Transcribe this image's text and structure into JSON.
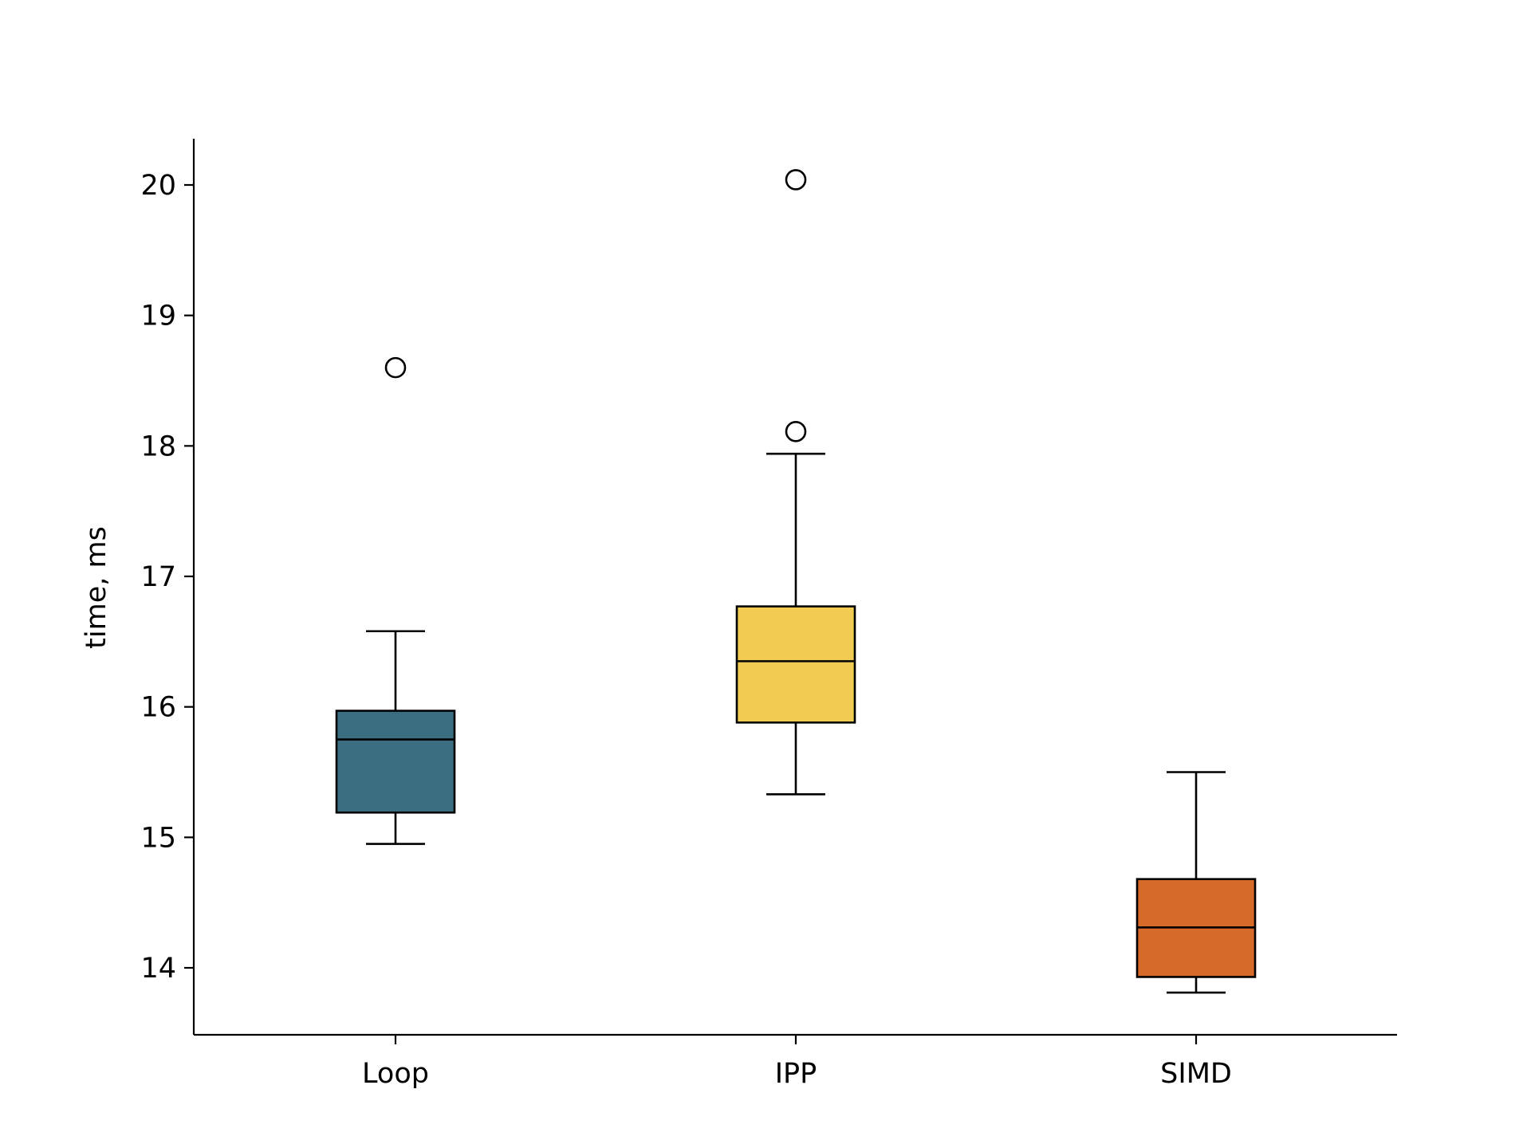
{
  "chart_data": {
    "type": "box",
    "title": "",
    "xlabel": "",
    "ylabel": "time, ms",
    "ylim": [
      13.5,
      20.35
    ],
    "yticks": [
      14,
      15,
      16,
      17,
      18,
      19,
      20
    ],
    "ytick_labels": [
      "14",
      "15",
      "16",
      "17",
      "18",
      "19",
      "20"
    ],
    "grid": false,
    "categories": [
      "Loop",
      "IPP",
      "SIMD"
    ],
    "boxes": [
      {
        "category": "Loop",
        "color": "#3a6e80",
        "whisker_low": 14.95,
        "q1": 15.19,
        "median": 15.75,
        "q3": 15.97,
        "whisker_high": 16.58,
        "outliers": [
          18.6
        ]
      },
      {
        "category": "IPP",
        "color": "#f2cc52",
        "whisker_low": 15.33,
        "q1": 15.88,
        "median": 16.35,
        "q3": 16.77,
        "whisker_high": 17.94,
        "outliers": [
          18.11,
          20.04
        ]
      },
      {
        "category": "SIMD",
        "color": "#d66a2b",
        "whisker_low": 13.81,
        "q1": 13.93,
        "median": 14.31,
        "q3": 14.68,
        "whisker_high": 15.5,
        "outliers": []
      }
    ]
  }
}
